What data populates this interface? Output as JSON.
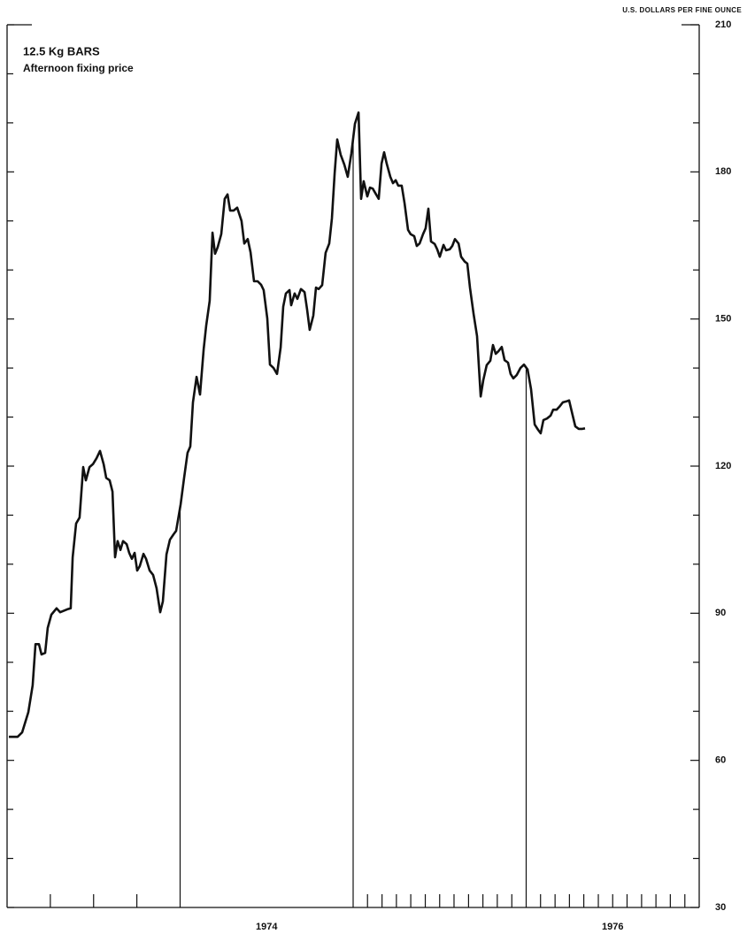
{
  "chart_data": {
    "type": "line",
    "title": "12.5 Kg BARS",
    "subtitle": "Afternoon fixing price",
    "y_label": "U.S. DOLLARS PER FINE OUNCE",
    "ylim": [
      30,
      210
    ],
    "yticks": [
      30,
      60,
      90,
      120,
      150,
      180,
      210
    ],
    "yminor_ticks": [
      40,
      50,
      70,
      80,
      100,
      110,
      130,
      140,
      160,
      170,
      190,
      200
    ],
    "xlim": [
      1973,
      1977
    ],
    "xticks": [
      1973.25,
      1973.5,
      1973.75,
      1974,
      1975,
      1975.083,
      1975.167,
      1975.25,
      1975.333,
      1975.417,
      1975.5,
      1975.583,
      1975.667,
      1975.75,
      1975.833,
      1975.917,
      1976,
      1976.083,
      1976.167,
      1976.25,
      1976.333,
      1976.417,
      1976.5,
      1976.583,
      1976.667,
      1976.75,
      1976.833,
      1976.917
    ],
    "xlabels": [
      {
        "value": 1974.5,
        "label": "1974"
      },
      {
        "value": 1976.5,
        "label": "1976"
      }
    ],
    "series": [
      {
        "name": "Afternoon fixing price",
        "color": "#111111",
        "x": [
          1973.01,
          1973.061,
          1973.087,
          1973.123,
          1973.148,
          1973.164,
          1973.184,
          1973.199,
          1973.22,
          1973.235,
          1973.256,
          1973.286,
          1973.307,
          1973.348,
          1973.368,
          1973.379,
          1973.399,
          1973.419,
          1973.44,
          1973.455,
          1973.476,
          1973.496,
          1973.517,
          1973.537,
          1973.558,
          1973.573,
          1973.593,
          1973.609,
          1973.624,
          1973.639,
          1973.655,
          1973.67,
          1973.691,
          1973.706,
          1973.721,
          1973.737,
          1973.752,
          1973.767,
          1973.788,
          1973.803,
          1973.824,
          1973.844,
          1973.864,
          1973.885,
          1973.9,
          1973.921,
          1973.941,
          1973.962,
          1973.977,
          1974.003,
          1974.023,
          1974.043,
          1974.059,
          1974.074,
          1974.095,
          1974.115,
          1974.136,
          1974.151,
          1974.171,
          1974.187,
          1974.202,
          1974.217,
          1974.238,
          1974.258,
          1974.274,
          1974.289,
          1974.309,
          1974.33,
          1974.355,
          1974.371,
          1974.391,
          1974.407,
          1974.427,
          1974.448,
          1974.468,
          1974.483,
          1974.504,
          1974.519,
          1974.54,
          1974.56,
          1974.581,
          1974.596,
          1974.611,
          1974.632,
          1974.642,
          1974.662,
          1974.678,
          1974.698,
          1974.719,
          1974.734,
          1974.749,
          1974.77,
          1974.785,
          1974.801,
          1974.821,
          1974.841,
          1974.862,
          1974.877,
          1974.893,
          1974.908,
          1974.928,
          1974.949,
          1974.969,
          1974.99,
          1975.01,
          1975.031,
          1975.046,
          1975.061,
          1975.082,
          1975.097,
          1975.113,
          1975.128,
          1975.148,
          1975.164,
          1975.179,
          1975.194,
          1975.215,
          1975.23,
          1975.246,
          1975.261,
          1975.281,
          1975.297,
          1975.317,
          1975.332,
          1975.353,
          1975.368,
          1975.384,
          1975.404,
          1975.419,
          1975.435,
          1975.45,
          1975.471,
          1975.486,
          1975.501,
          1975.522,
          1975.537,
          1975.558,
          1975.573,
          1975.588,
          1975.609,
          1975.624,
          1975.645,
          1975.66,
          1975.675,
          1975.696,
          1975.716,
          1975.737,
          1975.752,
          1975.772,
          1975.793,
          1975.808,
          1975.824,
          1975.839,
          1975.859,
          1975.875,
          1975.895,
          1975.91,
          1975.926,
          1975.946,
          1975.967,
          1975.987,
          1976.008,
          1976.028,
          1976.049,
          1976.069,
          1976.084,
          1976.1,
          1976.12,
          1976.141,
          1976.156,
          1976.176,
          1976.192,
          1976.212,
          1976.233,
          1976.248,
          1976.269,
          1976.284,
          1976.304,
          1976.325,
          1976.34
        ],
        "values": [
          64.8,
          64.8,
          65.7,
          69.8,
          75.3,
          83.7,
          83.7,
          81.6,
          81.9,
          87.0,
          89.7,
          91.0,
          90.2,
          90.8,
          91.0,
          101.4,
          108.3,
          109.5,
          119.8,
          117.1,
          119.8,
          120.4,
          121.6,
          123.1,
          120.4,
          117.6,
          117.1,
          114.8,
          101.4,
          104.7,
          102.9,
          104.7,
          104.1,
          102.3,
          101.1,
          102.3,
          98.7,
          99.6,
          102.1,
          101.1,
          98.7,
          97.8,
          95.1,
          90.2,
          92.4,
          102.0,
          105.0,
          106.1,
          106.8,
          112.2,
          117.6,
          122.7,
          124.0,
          133.0,
          138.2,
          134.6,
          143.8,
          148.7,
          153.7,
          167.6,
          163.3,
          164.6,
          167.3,
          174.5,
          175.4,
          172.1,
          172.1,
          172.7,
          170.0,
          165.4,
          166.3,
          163.6,
          157.7,
          157.7,
          157.0,
          155.9,
          150.1,
          140.7,
          140.0,
          138.8,
          144.2,
          152.5,
          155.2,
          155.9,
          152.8,
          155.2,
          154.1,
          156.1,
          155.5,
          151.9,
          147.8,
          150.7,
          156.4,
          156.1,
          156.9,
          163.5,
          165.4,
          170.5,
          179.7,
          186.6,
          183.5,
          181.5,
          179.0,
          183.8,
          189.8,
          192.1,
          174.5,
          178.1,
          175.0,
          176.8,
          176.6,
          175.7,
          174.5,
          181.7,
          184.0,
          181.7,
          179.0,
          177.7,
          178.3,
          177.2,
          177.2,
          173.6,
          168.2,
          167.3,
          166.9,
          164.9,
          165.4,
          167.3,
          168.5,
          172.5,
          165.8,
          165.3,
          164.2,
          162.7,
          165.1,
          164.0,
          164.2,
          164.9,
          166.3,
          165.4,
          162.7,
          161.7,
          161.3,
          156.4,
          151.0,
          146.5,
          134.2,
          137.5,
          140.6,
          141.5,
          144.7,
          142.9,
          143.4,
          144.3,
          141.6,
          141.1,
          138.8,
          137.9,
          138.6,
          140.0,
          140.7,
          139.7,
          135.7,
          128.5,
          127.4,
          126.7,
          129.4,
          129.7,
          130.3,
          131.5,
          131.5,
          132.1,
          133.0,
          133.2,
          133.4,
          130.3,
          128.1,
          127.6,
          127.6,
          127.7
        ]
      }
    ]
  }
}
